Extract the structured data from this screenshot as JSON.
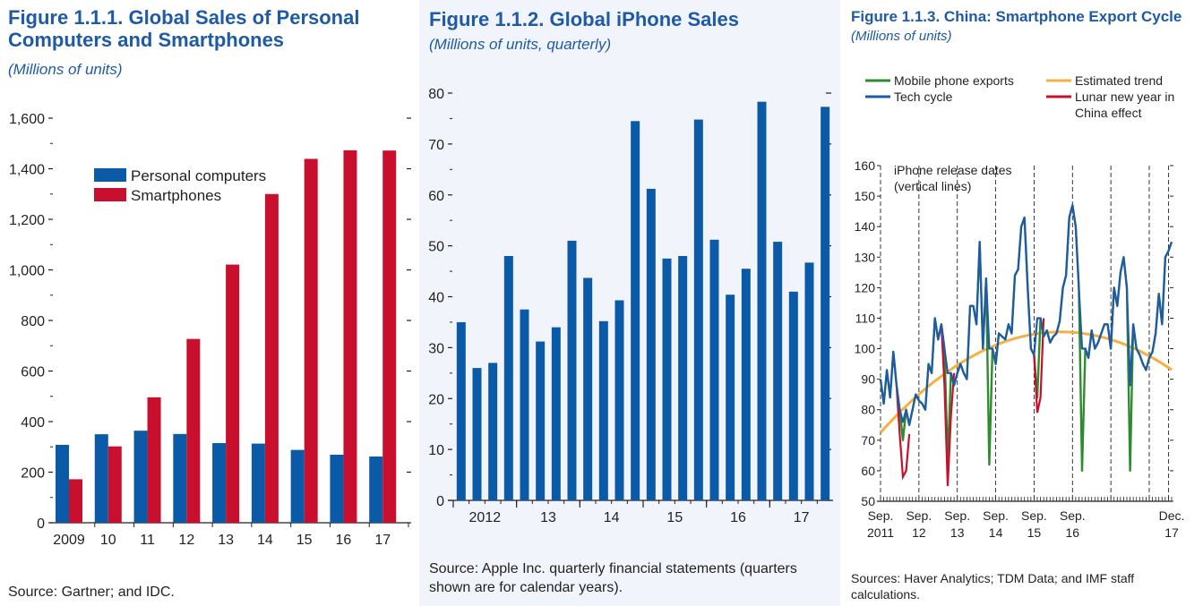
{
  "panels": [
    {
      "title_line1": "Figure 1.1.1.  Global Sales of Personal",
      "title_line2": "Computers and Smartphones",
      "subtitle": "(Millions of units)",
      "source": "Source: Gartner; and IDC."
    },
    {
      "title": "Figure 1.1.2.  Global iPhone Sales",
      "subtitle": "(Millions of units, quarterly)",
      "source_line1": "Source: Apple Inc. quarterly financial statements (quarters",
      "source_line2": "shown are for calendar years)."
    },
    {
      "title": "Figure 1.1.3.  China: Smartphone Export Cycle",
      "subtitle": "(Millions of units)",
      "source_line1": "Sources: Haver Analytics; TDM Data; and IMF staff",
      "source_line2": "calculations."
    }
  ],
  "chart_data": [
    {
      "type": "bar",
      "categories": [
        "2009",
        "10",
        "11",
        "12",
        "13",
        "14",
        "15",
        "16",
        "17"
      ],
      "series": [
        {
          "name": "Personal computers",
          "color": "#0a5aa8",
          "values": [
            308,
            350,
            364,
            351,
            315,
            313,
            288,
            269,
            262
          ]
        },
        {
          "name": "Smartphones",
          "color": "#c8102e",
          "values": [
            172,
            302,
            496,
            727,
            1021,
            1300,
            1439,
            1473,
            1472
          ]
        }
      ],
      "ylim": [
        0,
        1600
      ],
      "yticks": [
        0,
        200,
        400,
        600,
        800,
        1000,
        1200,
        1400,
        1600
      ],
      "ytick_labels": [
        "0",
        "200",
        "400",
        "600",
        "800",
        "1,000",
        "1,200",
        "1,400",
        "1,600"
      ],
      "legend_position": "upper-left",
      "grid": false
    },
    {
      "type": "bar",
      "series": [
        {
          "color": "#0a5aa8",
          "values": [
            35,
            26,
            27,
            48,
            37.5,
            31.2,
            34,
            51,
            43.7,
            35.2,
            39.3,
            74.5,
            61.2,
            47.5,
            48,
            74.8,
            51.2,
            40.4,
            45.5,
            78.3,
            50.8,
            41,
            46.7,
            77.3
          ]
        }
      ],
      "x_group_labels": [
        "2012",
        "13",
        "14",
        "15",
        "16",
        "17"
      ],
      "ylim": [
        0,
        80
      ],
      "yticks": [
        0,
        10,
        20,
        30,
        40,
        50,
        60,
        70,
        80
      ],
      "grid": false
    },
    {
      "type": "line",
      "x_start": "Sep. 2011",
      "x_end": "Dec. 2017",
      "x_tick_labels": [
        {
          "line1": "Sep.",
          "line2": "2011"
        },
        {
          "line1": "Sep.",
          "line2": "12"
        },
        {
          "line1": "Sep.",
          "line2": "13"
        },
        {
          "line1": "Sep.",
          "line2": "14"
        },
        {
          "line1": "Sep.",
          "line2": "15"
        },
        {
          "line1": "Sep.",
          "line2": "16"
        },
        {
          "line1": "Dec.",
          "line2": "17"
        }
      ],
      "ylim": [
        50,
        160
      ],
      "yticks": [
        50,
        60,
        70,
        80,
        90,
        100,
        110,
        120,
        130,
        140,
        150,
        160
      ],
      "series": [
        {
          "name": "Mobile phone exports",
          "color": "#2e8b2e",
          "values": [
            90,
            82,
            93,
            84,
            99,
            88,
            80,
            70,
            80,
            75,
            80,
            85,
            83,
            82,
            80,
            95,
            92,
            110,
            103,
            108,
            100,
            63,
            92,
            88,
            92,
            95,
            92,
            90,
            114,
            114,
            108,
            135,
            100,
            123,
            62,
            100,
            95,
            105,
            104,
            103,
            108,
            105,
            124,
            126,
            140,
            143,
            120,
            100,
            98,
            84,
            110,
            104,
            106,
            102,
            104,
            105,
            109,
            120,
            124,
            143,
            147,
            140,
            120,
            60,
            100,
            97,
            106,
            100,
            102,
            105,
            108,
            108,
            100,
            120,
            114,
            125,
            130,
            120,
            60,
            108,
            100,
            98,
            95,
            93,
            97,
            99,
            105,
            118,
            108,
            130,
            132,
            135
          ]
        },
        {
          "name": "Tech cycle",
          "color": "#1f5aa6",
          "values": [
            90,
            82,
            93,
            84,
            99,
            88,
            80,
            76,
            80,
            75,
            80,
            85,
            83,
            82,
            80,
            95,
            92,
            110,
            103,
            108,
            100,
            92,
            92,
            88,
            92,
            95,
            92,
            90,
            114,
            114,
            108,
            135,
            100,
            123,
            100,
            100,
            95,
            105,
            104,
            103,
            108,
            105,
            124,
            126,
            140,
            143,
            120,
            100,
            98,
            110,
            110,
            104,
            106,
            102,
            104,
            105,
            109,
            120,
            124,
            143,
            147,
            140,
            120,
            100,
            100,
            97,
            106,
            100,
            102,
            105,
            108,
            108,
            100,
            120,
            114,
            125,
            130,
            120,
            88,
            108,
            100,
            98,
            95,
            93,
            97,
            99,
            105,
            118,
            108,
            130,
            132,
            135
          ]
        },
        {
          "name": "Estimated trend",
          "color": "#f5b041"
        },
        {
          "name": "Lunar new year in China effect",
          "color": "#c8102e"
        }
      ],
      "lunar_segments": [
        {
          "from": 5,
          "to": 9,
          "values": [
            88,
            72,
            58,
            60,
            72
          ]
        },
        {
          "from": 19,
          "to": 23,
          "values": [
            108,
            88,
            55,
            78,
            92
          ]
        },
        {
          "from": 47,
          "to": 51,
          "values": [
            100,
            98,
            79,
            84,
            110
          ]
        }
      ],
      "annotation_line1": "iPhone release dates",
      "annotation_line2": "(vertical lines)",
      "legend_position": "top",
      "grid": false
    }
  ]
}
